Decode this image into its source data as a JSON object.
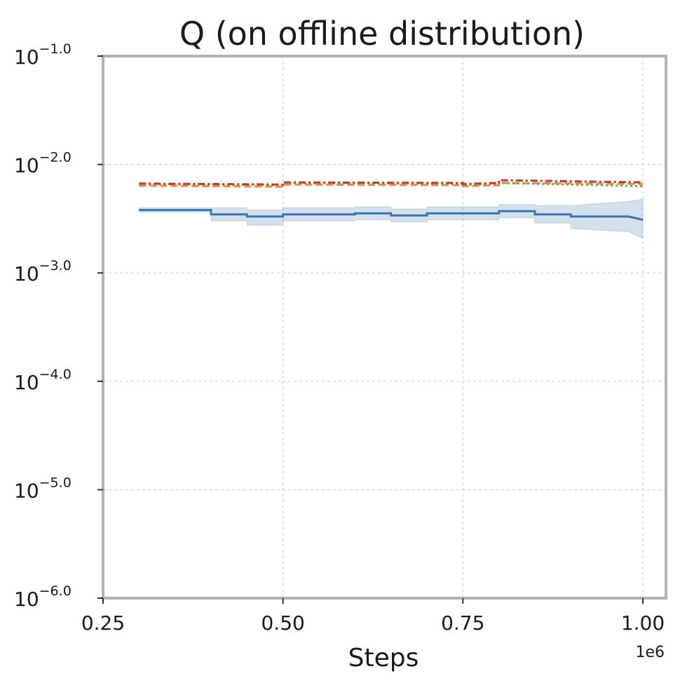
{
  "chart_data": {
    "type": "line",
    "title": "Q (on offline distribution)",
    "xlabel": "Steps",
    "ylabel": "",
    "x_offset_label": "1e6",
    "xlim": [
      0.25,
      1.0
    ],
    "ylim_log10": [
      -6.0,
      -1.0
    ],
    "yscale": "log",
    "grid": true,
    "x_ticks": [
      {
        "value": 0.25,
        "label": "0.25"
      },
      {
        "value": 0.5,
        "label": "0.50"
      },
      {
        "value": 0.75,
        "label": "0.75"
      },
      {
        "value": 1.0,
        "label": "1.00"
      }
    ],
    "y_ticks": [
      {
        "value": -6,
        "base": "10",
        "exp": "−6.0"
      },
      {
        "value": -5,
        "base": "10",
        "exp": "−5.0"
      },
      {
        "value": -4,
        "base": "10",
        "exp": "−4.0"
      },
      {
        "value": -3,
        "base": "10",
        "exp": "−3.0"
      },
      {
        "value": -2,
        "base": "10",
        "exp": "−2.0"
      },
      {
        "value": -1,
        "base": "10",
        "exp": "−1.0"
      }
    ],
    "series": [
      {
        "name": "blue",
        "color": "#3b75af",
        "style": "solid",
        "x": [
          0.3,
          0.4,
          0.4,
          0.45,
          0.45,
          0.5,
          0.5,
          0.6,
          0.6,
          0.65,
          0.65,
          0.7,
          0.7,
          0.8,
          0.8,
          0.85,
          0.85,
          0.9,
          0.9,
          0.98,
          1.0
        ],
        "log10_y": [
          -2.42,
          -2.42,
          -2.46,
          -2.46,
          -2.48,
          -2.48,
          -2.46,
          -2.46,
          -2.45,
          -2.45,
          -2.47,
          -2.47,
          -2.45,
          -2.45,
          -2.43,
          -2.43,
          -2.46,
          -2.46,
          -2.48,
          -2.48,
          -2.51
        ],
        "band_low": [
          -2.44,
          -2.44,
          -2.52,
          -2.52,
          -2.56,
          -2.56,
          -2.52,
          -2.52,
          -2.51,
          -2.51,
          -2.53,
          -2.53,
          -2.51,
          -2.51,
          -2.49,
          -2.49,
          -2.54,
          -2.54,
          -2.59,
          -2.62,
          -2.68
        ],
        "band_high": [
          -2.4,
          -2.4,
          -2.4,
          -2.4,
          -2.42,
          -2.42,
          -2.4,
          -2.4,
          -2.39,
          -2.39,
          -2.41,
          -2.41,
          -2.39,
          -2.39,
          -2.37,
          -2.37,
          -2.38,
          -2.38,
          -2.38,
          -2.34,
          -2.32
        ]
      },
      {
        "name": "orange",
        "color": "#f08c3c",
        "style": "dashed",
        "x": [
          0.3,
          0.5,
          0.5,
          0.75,
          0.75,
          0.8,
          0.8,
          1.0
        ],
        "log10_y": [
          -2.195,
          -2.205,
          -2.185,
          -2.19,
          -2.2,
          -2.19,
          -2.17,
          -2.18
        ]
      },
      {
        "name": "green",
        "color": "#5fb35a",
        "style": "dotted",
        "x": [
          0.3,
          0.5,
          0.5,
          0.75,
          0.75,
          0.8,
          0.8,
          1.0
        ],
        "log10_y": [
          -2.18,
          -2.19,
          -2.17,
          -2.18,
          -2.19,
          -2.18,
          -2.17,
          -2.2
        ]
      },
      {
        "name": "red",
        "color": "#d0342c",
        "style": "dashdot",
        "x": [
          0.3,
          0.5,
          0.5,
          0.75,
          0.75,
          0.8,
          0.8,
          1.0
        ],
        "log10_y": [
          -2.175,
          -2.185,
          -2.165,
          -2.17,
          -2.18,
          -2.17,
          -2.145,
          -2.165
        ]
      }
    ]
  }
}
